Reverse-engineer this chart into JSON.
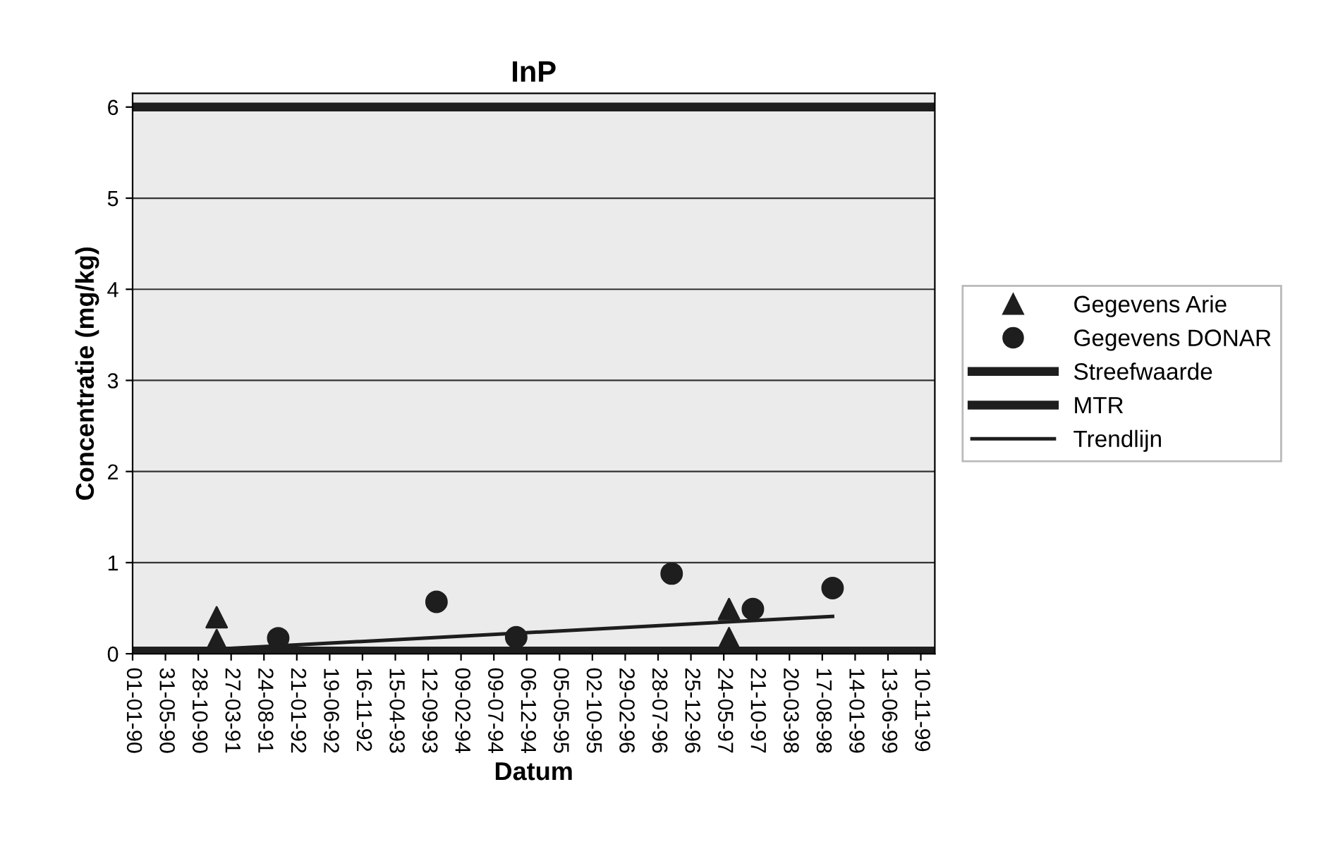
{
  "chart_data": {
    "type": "scatter",
    "title": "InP",
    "xlabel": "Datum",
    "ylabel": "Concentratie (mg/kg)",
    "series": [
      {
        "name": "Gegevens Arie",
        "marker": "triangle",
        "color": "#1e1e1e",
        "x": [
          "1991-01-20",
          "1991-01-20",
          "1997-06-17",
          "1997-06-17"
        ],
        "values": [
          0.4,
          0.15,
          0.49,
          0.17
        ]
      },
      {
        "name": "Gegevens DONAR",
        "marker": "circle",
        "color": "#1e1e1e",
        "x": [
          "1991-10-28",
          "1993-10-20",
          "1994-10-19",
          "1996-09-28",
          "1997-10-04",
          "1998-10-03"
        ],
        "values": [
          0.17,
          0.57,
          0.18,
          0.88,
          0.49,
          0.72
        ]
      },
      {
        "name": "Trendlijn",
        "type": "line",
        "marker": "none",
        "line_style": "solid",
        "color": "#1e1e1e",
        "x": [
          "1991-01-20",
          "1998-10-03"
        ],
        "values": [
          0.05,
          0.41
        ]
      }
    ],
    "ref_lines": [
      {
        "axis": "y",
        "value": 0.03,
        "label": "Streefwaarde",
        "color": "#1e1e1e"
      },
      {
        "axis": "y",
        "value": 6,
        "label": "MTR",
        "color": "#1e1e1e"
      }
    ],
    "xlim": [
      "1990-01-01",
      "2000-01-13"
    ],
    "xticks": [
      {
        "value": "1990-01-01",
        "label": "01-01-90"
      },
      {
        "value": "1990-05-31",
        "label": "31-05-90"
      },
      {
        "value": "1990-10-28",
        "label": "28-10-90"
      },
      {
        "value": "1991-03-27",
        "label": "27-03-91"
      },
      {
        "value": "1991-08-24",
        "label": "24-08-91"
      },
      {
        "value": "1992-01-21",
        "label": "21-01-92"
      },
      {
        "value": "1992-06-19",
        "label": "19-06-92"
      },
      {
        "value": "1992-11-16",
        "label": "16-11-92"
      },
      {
        "value": "1993-04-15",
        "label": "15-04-93"
      },
      {
        "value": "1993-09-12",
        "label": "12-09-93"
      },
      {
        "value": "1994-02-09",
        "label": "09-02-94"
      },
      {
        "value": "1994-07-09",
        "label": "09-07-94"
      },
      {
        "value": "1994-12-06",
        "label": "06-12-94"
      },
      {
        "value": "1995-05-05",
        "label": "05-05-95"
      },
      {
        "value": "1995-10-02",
        "label": "02-10-95"
      },
      {
        "value": "1996-02-29",
        "label": "29-02-96"
      },
      {
        "value": "1996-07-28",
        "label": "28-07-96"
      },
      {
        "value": "1996-12-25",
        "label": "25-12-96"
      },
      {
        "value": "1997-05-24",
        "label": "24-05-97"
      },
      {
        "value": "1997-10-21",
        "label": "21-10-97"
      },
      {
        "value": "1998-03-20",
        "label": "20-03-98"
      },
      {
        "value": "1998-08-17",
        "label": "17-08-98"
      },
      {
        "value": "1999-01-14",
        "label": "14-01-99"
      },
      {
        "value": "1999-06-13",
        "label": "13-06-99"
      },
      {
        "value": "1999-11-10",
        "label": "10-11-99"
      }
    ],
    "ylim": [
      0,
      6.15
    ],
    "yticks": [
      0,
      1,
      2,
      3,
      4,
      5,
      6
    ],
    "grid": "y",
    "legend": "right"
  }
}
